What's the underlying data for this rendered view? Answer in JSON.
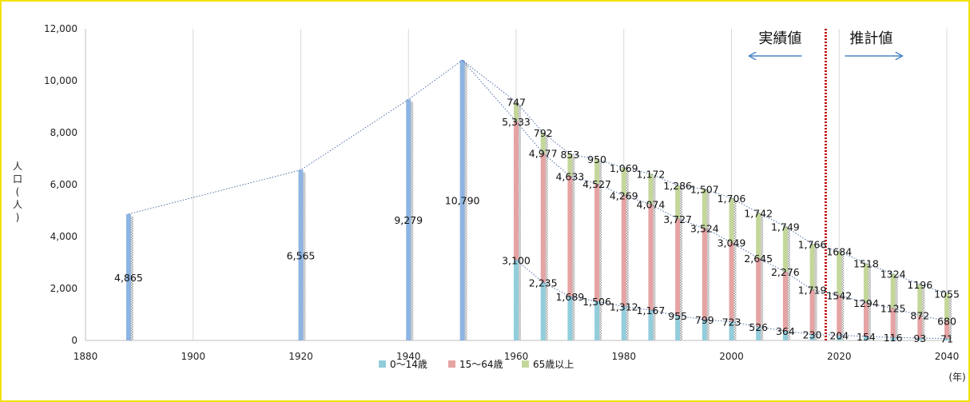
{
  "chart_data": {
    "type": "bar",
    "stacked": true,
    "xlabel": "(年)",
    "ylabel": "人口(人)",
    "xlim": [
      1880,
      2040
    ],
    "ylim": [
      0,
      12000
    ],
    "x_ticks": [
      1880,
      1900,
      1920,
      1940,
      1960,
      1980,
      2000,
      2020,
      2040
    ],
    "x_tick_labels": [
      "1880",
      "1900",
      "1920",
      "1940",
      "1960",
      "1980",
      "2000",
      "2020",
      "2040"
    ],
    "y_ticks": [
      0,
      2000,
      4000,
      6000,
      8000,
      10000,
      12000
    ],
    "y_tick_labels": [
      "0",
      "2,000",
      "4,000",
      "6,000",
      "8,000",
      "10,000",
      "12,000"
    ],
    "grid": "vertical",
    "legend_position": "bottom",
    "colors": {
      "total": "#8db4e2",
      "age_0_14": "#92cddc",
      "age_15_64": "#e6a3a3",
      "age_65_plus": "#c4d79b",
      "divider": "#c00000"
    },
    "series_names": [
      "0～14歳",
      "15～64歳",
      "65歳以上"
    ],
    "total_only": [
      {
        "x": 1888,
        "value": 4865,
        "label": "4,865"
      },
      {
        "x": 1920,
        "value": 6565,
        "label": "6,565"
      },
      {
        "x": 1940,
        "value": 9279,
        "label": "9,279"
      },
      {
        "x": 1950,
        "value": 10790,
        "label": "10,790"
      }
    ],
    "stacked_points": [
      {
        "x": 1960,
        "a": 3100,
        "b": 5333,
        "c": 747,
        "la": "3,100",
        "lb": "5,333",
        "lc": "747"
      },
      {
        "x": 1965,
        "a": 2235,
        "b": 4977,
        "c": 792,
        "la": "2,235",
        "lb": "4,977",
        "lc": "792"
      },
      {
        "x": 1970,
        "a": 1689,
        "b": 4633,
        "c": 853,
        "la": "1,689",
        "lb": "4,633",
        "lc": "853"
      },
      {
        "x": 1975,
        "a": 1506,
        "b": 4527,
        "c": 950,
        "la": "1,506",
        "lb": "4,527",
        "lc": "950"
      },
      {
        "x": 1980,
        "a": 1312,
        "b": 4269,
        "c": 1069,
        "la": "1,312",
        "lb": "4,269",
        "lc": "1,069"
      },
      {
        "x": 1985,
        "a": 1167,
        "b": 4074,
        "c": 1172,
        "la": "1,167",
        "lb": "4,074",
        "lc": "1,172"
      },
      {
        "x": 1990,
        "a": 955,
        "b": 3727,
        "c": 1286,
        "la": "955",
        "lb": "3,727",
        "lc": "1,286"
      },
      {
        "x": 1995,
        "a": 799,
        "b": 3524,
        "c": 1507,
        "la": "799",
        "lb": "3,524",
        "lc": "1,507"
      },
      {
        "x": 2000,
        "a": 723,
        "b": 3049,
        "c": 1706,
        "la": "723",
        "lb": "3,049",
        "lc": "1,706"
      },
      {
        "x": 2005,
        "a": 526,
        "b": 2645,
        "c": 1742,
        "la": "526",
        "lb": "2,645",
        "lc": "1,742"
      },
      {
        "x": 2010,
        "a": 364,
        "b": 2276,
        "c": 1749,
        "la": "364",
        "lb": "2,276",
        "lc": "1,749"
      },
      {
        "x": 2015,
        "a": 230,
        "b": 1719,
        "c": 1766,
        "la": "230",
        "lb": "1,719",
        "lc": "1,766"
      },
      {
        "x": 2020,
        "a": 204,
        "b": 1542,
        "c": 1684,
        "la": "204",
        "lb": "1542",
        "lc": "1684"
      },
      {
        "x": 2025,
        "a": 154,
        "b": 1294,
        "c": 1518,
        "la": "154",
        "lb": "1294",
        "lc": "1518"
      },
      {
        "x": 2030,
        "a": 116,
        "b": 1125,
        "c": 1324,
        "la": "116",
        "lb": "1125",
        "lc": "1324"
      },
      {
        "x": 2035,
        "a": 93,
        "b": 872,
        "c": 1196,
        "la": "93",
        "lb": "872",
        "lc": "1196"
      },
      {
        "x": 2040,
        "a": 71,
        "b": 680,
        "c": 1055,
        "la": "71",
        "lb": "680",
        "lc": "1055"
      }
    ],
    "annotations": {
      "actual": "実績値",
      "estimate": "推計値",
      "divider_x": 2017.5
    }
  }
}
